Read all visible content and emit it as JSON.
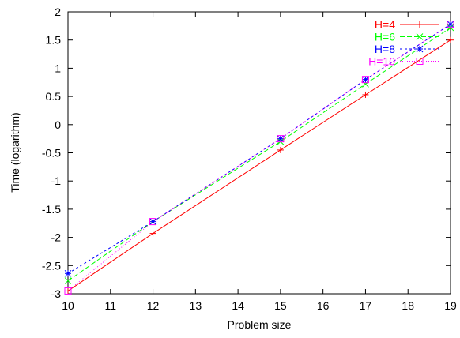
{
  "chart_data": {
    "type": "line",
    "title": "",
    "xlabel": "Problem size",
    "ylabel": "Time (logarithm)",
    "xlim": [
      10,
      19
    ],
    "ylim": [
      -3,
      2
    ],
    "x_ticks": [
      10,
      11,
      12,
      13,
      14,
      15,
      16,
      17,
      18,
      19
    ],
    "y_ticks": [
      -3,
      -2.5,
      -2,
      -1.5,
      -1,
      -0.5,
      0,
      0.5,
      1,
      1.5,
      2
    ],
    "grid": false,
    "legend_position": "top-right",
    "x": [
      10,
      12,
      15,
      17,
      19
    ],
    "series": [
      {
        "name": "H=4",
        "color": "#ff0000",
        "marker": "plus",
        "dash": "",
        "values": [
          -2.95,
          -1.93,
          -0.45,
          0.53,
          1.5
        ]
      },
      {
        "name": "H=6",
        "color": "#00ff00",
        "marker": "cross",
        "dash": "6,3",
        "values": [
          -2.77,
          -1.72,
          -0.3,
          0.72,
          1.72
        ]
      },
      {
        "name": "H=8",
        "color": "#0000ff",
        "marker": "star",
        "dash": "3,3",
        "values": [
          -2.64,
          -1.72,
          -0.25,
          0.8,
          1.78
        ]
      },
      {
        "name": "H=10",
        "color": "#ff00ff",
        "marker": "square",
        "dash": "1,2",
        "values": [
          -2.95,
          -1.72,
          -0.25,
          0.8,
          1.78
        ]
      }
    ]
  }
}
